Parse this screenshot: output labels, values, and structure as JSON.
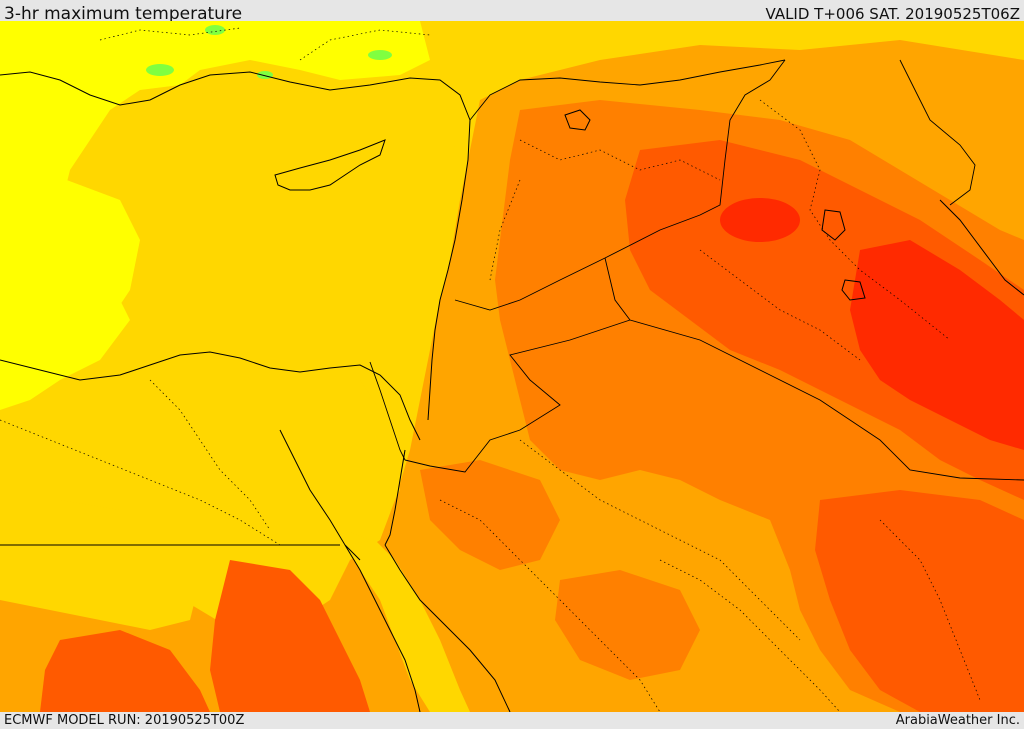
{
  "header": {
    "title": "3-hr maximum temperature",
    "valid_time": "VALID T+006 SAT. 20190525T06Z"
  },
  "footer": {
    "model_run": "ECMWF MODEL RUN: 20190525T00Z",
    "credit": "ArabiaWeather Inc."
  },
  "map": {
    "field": "3-hr maximum temperature",
    "palette": {
      "cool": "#ffff00",
      "mild": "#ffd700",
      "warm": "#ffa500",
      "hot": "#ff8000",
      "very_hot": "#ff5a00",
      "extreme": "#ff2a00",
      "cold_spot": "#80ff40"
    }
  }
}
